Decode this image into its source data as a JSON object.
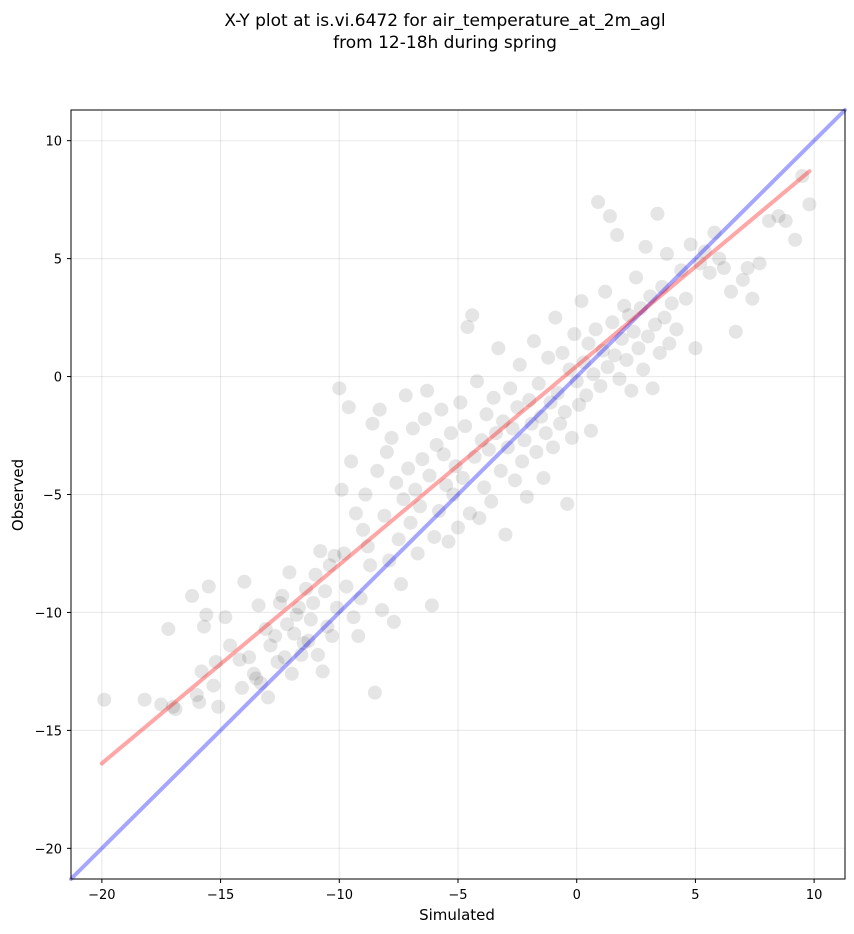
{
  "chart_data": {
    "type": "scatter",
    "title": "X-Y plot at is.vi.6472 for air_temperature_at_2m_agl",
    "subtitle": "from 12-18h during spring",
    "xlabel": "Simulated",
    "ylabel": "Observed",
    "xlim": [
      -21.3,
      11.3
    ],
    "ylim": [
      -21.3,
      11.3
    ],
    "xticks": [
      -20,
      -15,
      -10,
      -5,
      0,
      5,
      10
    ],
    "yticks": [
      -20,
      -15,
      -10,
      -5,
      0,
      5,
      10
    ],
    "xtick_labels": [
      "−20",
      "−15",
      "−10",
      "−5",
      "0",
      "5",
      "10"
    ],
    "ytick_labels": [
      "−20",
      "−15",
      "−10",
      "−5",
      "0",
      "5",
      "10"
    ],
    "grid": true,
    "point_color": "#000000",
    "point_opacity": 0.1,
    "points": [
      [
        -19.9,
        -13.7
      ],
      [
        -18.2,
        -13.7
      ],
      [
        -17.5,
        -13.9
      ],
      [
        -17.2,
        -10.7
      ],
      [
        -17.0,
        -14.0
      ],
      [
        -16.9,
        -14.1
      ],
      [
        -16.2,
        -9.3
      ],
      [
        -16.0,
        -13.5
      ],
      [
        -15.9,
        -13.8
      ],
      [
        -15.8,
        -12.5
      ],
      [
        -15.7,
        -10.6
      ],
      [
        -15.6,
        -10.1
      ],
      [
        -15.5,
        -8.9
      ],
      [
        -15.3,
        -13.1
      ],
      [
        -15.2,
        -12.1
      ],
      [
        -15.1,
        -14.0
      ],
      [
        -14.8,
        -10.2
      ],
      [
        -14.6,
        -11.4
      ],
      [
        -14.2,
        -12.0
      ],
      [
        -14.1,
        -13.2
      ],
      [
        -14.0,
        -8.7
      ],
      [
        -13.8,
        -11.9
      ],
      [
        -13.6,
        -12.6
      ],
      [
        -13.5,
        -12.8
      ],
      [
        -13.4,
        -9.7
      ],
      [
        -13.3,
        -13.0
      ],
      [
        -13.1,
        -10.7
      ],
      [
        -13.0,
        -13.6
      ],
      [
        -12.9,
        -11.4
      ],
      [
        -12.7,
        -11.0
      ],
      [
        -12.6,
        -12.1
      ],
      [
        -12.5,
        -9.6
      ],
      [
        -12.4,
        -9.3
      ],
      [
        -12.3,
        -11.9
      ],
      [
        -12.2,
        -10.5
      ],
      [
        -12.1,
        -8.3
      ],
      [
        -12.0,
        -12.6
      ],
      [
        -11.9,
        -10.9
      ],
      [
        -11.8,
        -10.1
      ],
      [
        -11.7,
        -9.8
      ],
      [
        -11.6,
        -11.8
      ],
      [
        -11.5,
        -11.3
      ],
      [
        -11.4,
        -9.0
      ],
      [
        -11.3,
        -11.2
      ],
      [
        -11.2,
        -10.3
      ],
      [
        -11.1,
        -9.6
      ],
      [
        -11.0,
        -8.4
      ],
      [
        -10.9,
        -11.8
      ],
      [
        -10.8,
        -7.4
      ],
      [
        -10.7,
        -12.5
      ],
      [
        -10.6,
        -9.1
      ],
      [
        -10.5,
        -10.6
      ],
      [
        -10.4,
        -8.0
      ],
      [
        -10.3,
        -11.0
      ],
      [
        -10.2,
        -7.6
      ],
      [
        -10.1,
        -9.8
      ],
      [
        -10.0,
        -0.5
      ],
      [
        -9.9,
        -4.8
      ],
      [
        -9.8,
        -7.5
      ],
      [
        -9.7,
        -8.9
      ],
      [
        -9.6,
        -1.3
      ],
      [
        -9.5,
        -3.6
      ],
      [
        -9.4,
        -10.2
      ],
      [
        -9.3,
        -5.8
      ],
      [
        -9.2,
        -11.0
      ],
      [
        -9.1,
        -9.4
      ],
      [
        -9.0,
        -6.5
      ],
      [
        -8.9,
        -5.0
      ],
      [
        -8.8,
        -7.2
      ],
      [
        -8.7,
        -8.0
      ],
      [
        -8.6,
        -2.0
      ],
      [
        -8.5,
        -13.4
      ],
      [
        -8.4,
        -4.0
      ],
      [
        -8.3,
        -1.4
      ],
      [
        -8.2,
        -9.9
      ],
      [
        -8.1,
        -5.9
      ],
      [
        -8.0,
        -3.2
      ],
      [
        -7.9,
        -7.8
      ],
      [
        -7.8,
        -2.6
      ],
      [
        -7.7,
        -10.4
      ],
      [
        -7.6,
        -4.5
      ],
      [
        -7.5,
        -6.9
      ],
      [
        -7.4,
        -8.8
      ],
      [
        -7.3,
        -5.2
      ],
      [
        -7.2,
        -0.8
      ],
      [
        -7.1,
        -3.9
      ],
      [
        -7.0,
        -6.2
      ],
      [
        -6.9,
        -2.2
      ],
      [
        -6.8,
        -4.8
      ],
      [
        -6.7,
        -7.5
      ],
      [
        -6.6,
        -5.5
      ],
      [
        -6.5,
        -3.5
      ],
      [
        -6.4,
        -1.8
      ],
      [
        -6.3,
        -0.6
      ],
      [
        -6.2,
        -4.2
      ],
      [
        -6.1,
        -9.7
      ],
      [
        -6.0,
        -6.8
      ],
      [
        -5.9,
        -2.9
      ],
      [
        -5.8,
        -5.7
      ],
      [
        -5.7,
        -1.4
      ],
      [
        -5.6,
        -3.3
      ],
      [
        -5.5,
        -4.6
      ],
      [
        -5.4,
        -7.0
      ],
      [
        -5.3,
        -2.4
      ],
      [
        -5.2,
        -5.0
      ],
      [
        -5.1,
        -3.8
      ],
      [
        -5.0,
        -6.4
      ],
      [
        -4.9,
        -1.1
      ],
      [
        -4.8,
        -4.3
      ],
      [
        -4.7,
        -2.1
      ],
      [
        -4.6,
        2.1
      ],
      [
        -4.5,
        -5.8
      ],
      [
        -4.4,
        2.6
      ],
      [
        -4.3,
        -3.4
      ],
      [
        -4.2,
        -0.2
      ],
      [
        -4.1,
        -6.0
      ],
      [
        -4.0,
        -2.7
      ],
      [
        -3.9,
        -4.7
      ],
      [
        -3.8,
        -1.6
      ],
      [
        -3.7,
        -3.1
      ],
      [
        -3.6,
        -5.3
      ],
      [
        -3.5,
        -0.9
      ],
      [
        -3.4,
        -2.4
      ],
      [
        -3.3,
        1.2
      ],
      [
        -3.2,
        -4.0
      ],
      [
        -3.1,
        -1.9
      ],
      [
        -3.0,
        -6.7
      ],
      [
        -2.9,
        -3.0
      ],
      [
        -2.8,
        -0.5
      ],
      [
        -2.7,
        -2.2
      ],
      [
        -2.6,
        -4.4
      ],
      [
        -2.5,
        -1.3
      ],
      [
        -2.4,
        0.5
      ],
      [
        -2.3,
        -3.6
      ],
      [
        -2.2,
        -2.7
      ],
      [
        -2.1,
        -5.1
      ],
      [
        -2.0,
        -1.0
      ],
      [
        -1.9,
        -2.0
      ],
      [
        -1.8,
        1.5
      ],
      [
        -1.7,
        -3.2
      ],
      [
        -1.6,
        -0.3
      ],
      [
        -1.5,
        -1.7
      ],
      [
        -1.4,
        -4.3
      ],
      [
        -1.3,
        -2.4
      ],
      [
        -1.2,
        0.8
      ],
      [
        -1.1,
        -1.1
      ],
      [
        -1.0,
        -3.0
      ],
      [
        -0.9,
        2.5
      ],
      [
        -0.8,
        -0.7
      ],
      [
        -0.7,
        -2.0
      ],
      [
        -0.6,
        1.0
      ],
      [
        -0.5,
        -1.5
      ],
      [
        -0.4,
        -5.4
      ],
      [
        -0.3,
        0.3
      ],
      [
        -0.2,
        -2.6
      ],
      [
        -0.1,
        1.8
      ],
      [
        0.0,
        -0.2
      ],
      [
        0.1,
        -1.2
      ],
      [
        0.2,
        3.2
      ],
      [
        0.3,
        0.6
      ],
      [
        0.4,
        -0.8
      ],
      [
        0.5,
        1.4
      ],
      [
        0.6,
        -2.3
      ],
      [
        0.7,
        0.1
      ],
      [
        0.8,
        2.0
      ],
      [
        0.9,
        7.4
      ],
      [
        1.0,
        -0.4
      ],
      [
        1.1,
        1.1
      ],
      [
        1.2,
        3.6
      ],
      [
        1.3,
        0.4
      ],
      [
        1.4,
        6.8
      ],
      [
        1.5,
        2.3
      ],
      [
        1.6,
        0.9
      ],
      [
        1.7,
        6.0
      ],
      [
        1.8,
        -0.1
      ],
      [
        1.9,
        1.6
      ],
      [
        2.0,
        3.0
      ],
      [
        2.1,
        0.7
      ],
      [
        2.2,
        2.6
      ],
      [
        2.3,
        -0.6
      ],
      [
        2.4,
        1.9
      ],
      [
        2.5,
        4.2
      ],
      [
        2.6,
        1.2
      ],
      [
        2.7,
        2.9
      ],
      [
        2.8,
        0.3
      ],
      [
        2.9,
        5.5
      ],
      [
        3.0,
        1.7
      ],
      [
        3.1,
        3.4
      ],
      [
        3.2,
        -0.5
      ],
      [
        3.3,
        2.2
      ],
      [
        3.4,
        6.9
      ],
      [
        3.5,
        1.0
      ],
      [
        3.6,
        3.8
      ],
      [
        3.7,
        2.5
      ],
      [
        3.8,
        5.2
      ],
      [
        3.9,
        1.4
      ],
      [
        4.0,
        3.1
      ],
      [
        4.2,
        2.0
      ],
      [
        4.4,
        4.5
      ],
      [
        4.6,
        3.3
      ],
      [
        4.8,
        5.6
      ],
      [
        5.0,
        1.2
      ],
      [
        5.2,
        4.8
      ],
      [
        5.4,
        5.3
      ],
      [
        5.6,
        4.4
      ],
      [
        5.8,
        6.1
      ],
      [
        6.0,
        5.0
      ],
      [
        6.2,
        4.6
      ],
      [
        6.5,
        3.6
      ],
      [
        6.7,
        1.9
      ],
      [
        7.0,
        4.1
      ],
      [
        7.2,
        4.6
      ],
      [
        7.4,
        3.3
      ],
      [
        7.7,
        4.8
      ],
      [
        8.1,
        6.6
      ],
      [
        8.5,
        6.8
      ],
      [
        8.8,
        6.6
      ],
      [
        9.2,
        5.8
      ],
      [
        9.5,
        8.5
      ],
      [
        9.8,
        7.3
      ]
    ],
    "series": [
      {
        "type": "line",
        "color": "#0000ff",
        "opacity": 0.35,
        "x": [
          -21.3,
          11.3
        ],
        "y": [
          -21.3,
          11.3
        ]
      },
      {
        "type": "line",
        "color": "#ff0000",
        "opacity": 0.35,
        "x": [
          -20.0,
          9.8
        ],
        "y": [
          -16.4,
          8.7
        ]
      }
    ]
  }
}
